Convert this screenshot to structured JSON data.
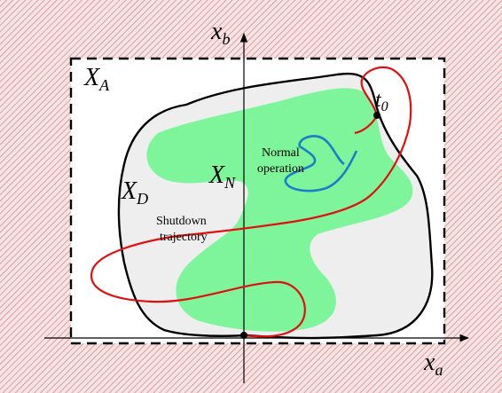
{
  "labels": {
    "x_b": "x",
    "x_b_sub": "b",
    "x_a": "x",
    "x_a_sub": "a",
    "X_A": "X",
    "X_A_sub": "A",
    "X_D": "X",
    "X_D_sub": "D",
    "X_N": "X",
    "X_N_sub": "N",
    "t0": "t",
    "t0_sub": "0",
    "normal_line1": "Normal",
    "normal_line2": "operation",
    "shutdown_line1": "Shutdown",
    "shutdown_line2": "trajectory"
  },
  "colors": {
    "hatch_line": "#d88080",
    "hatch_bg": "#f6e4e4",
    "region_A": "#ffffff",
    "region_D": "#eeeeee",
    "region_N": "#7ef59a",
    "shutdown_path": "#e01010",
    "normal_path": "#1a7fc8",
    "outline": "#000000"
  }
}
